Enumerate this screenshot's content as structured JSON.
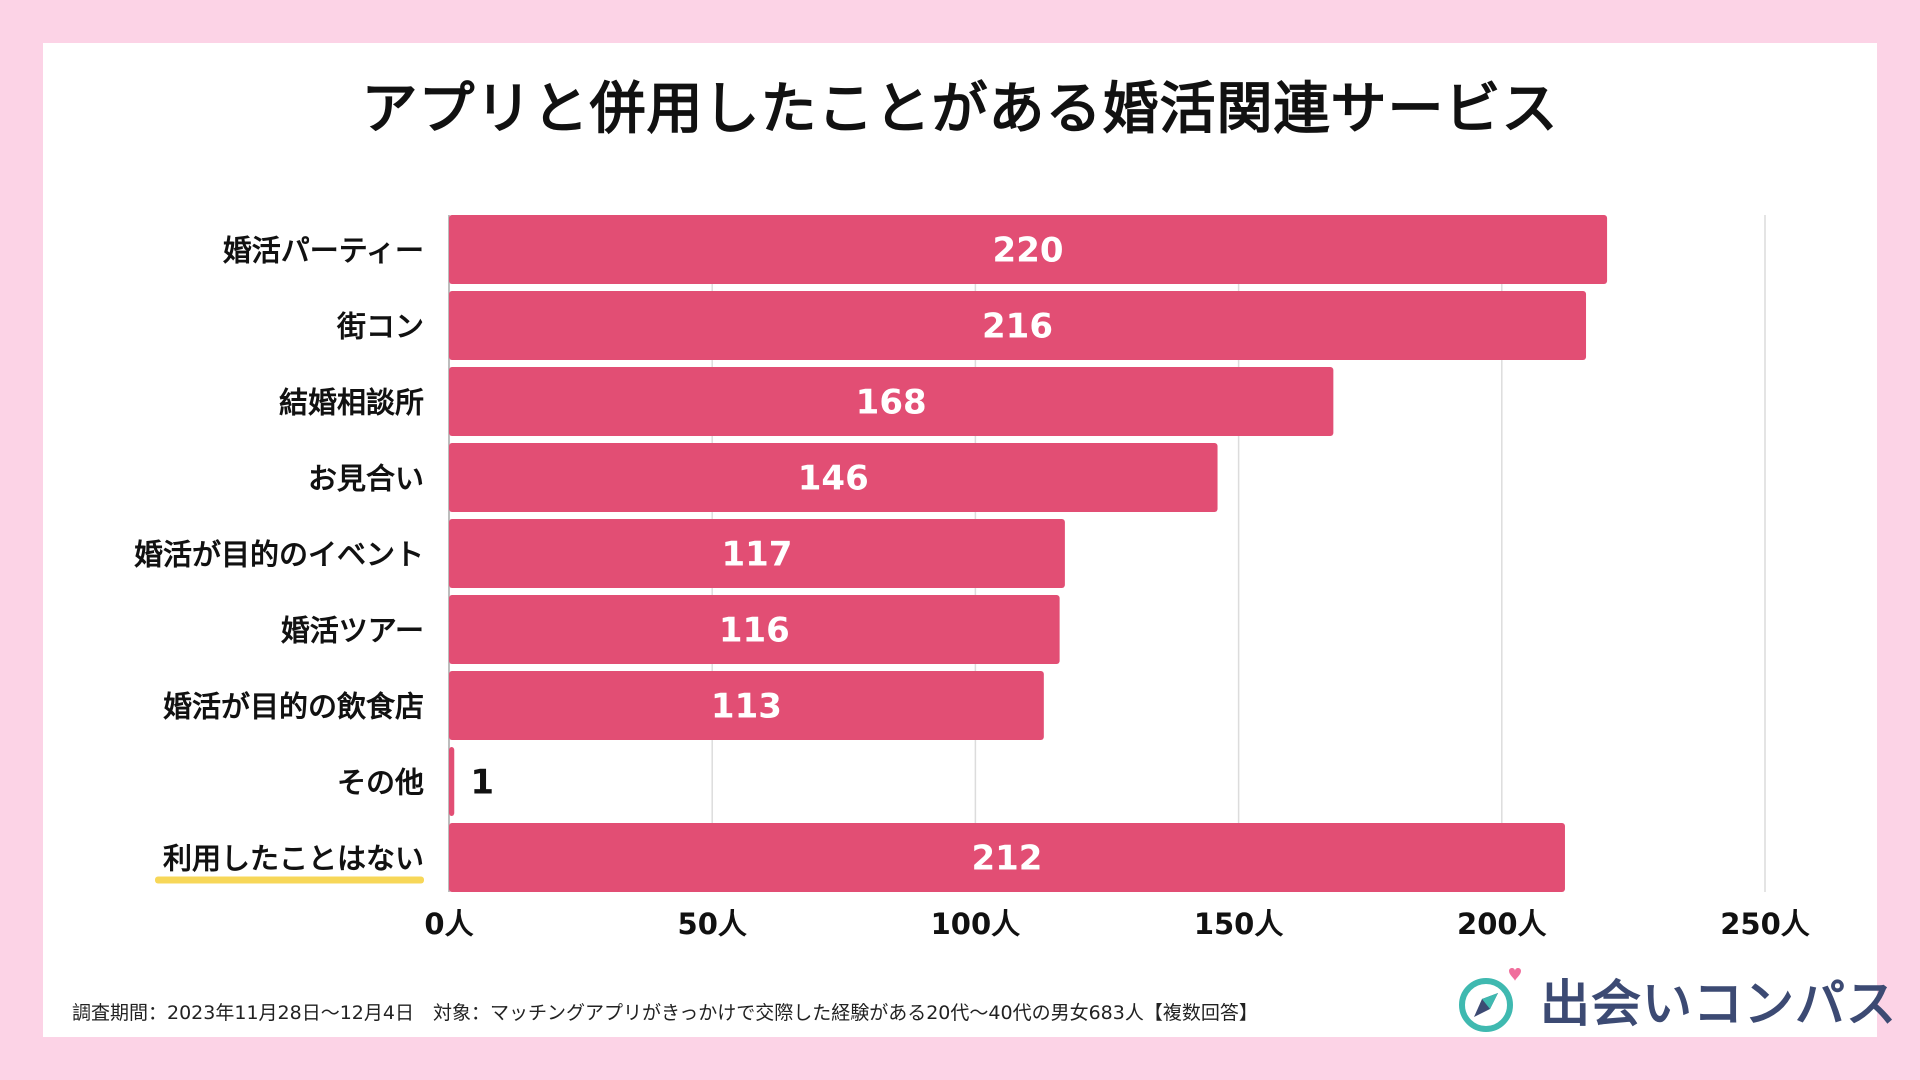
{
  "title": "アプリと併用したことがある婚活関連サービス",
  "chart_data": {
    "type": "bar",
    "orientation": "horizontal",
    "title": "アプリと併用したことがある婚活関連サービス",
    "categories": [
      "婚活パーティー",
      "街コン",
      "結婚相談所",
      "お見合い",
      "婚活が目的のイベント",
      "婚活ツアー",
      "婚活が目的の飲食店",
      "その他",
      "利用したことはない"
    ],
    "values": [
      220,
      216,
      168,
      146,
      117,
      116,
      113,
      1,
      212
    ],
    "x_ticks": [
      "0人",
      "50人",
      "100人",
      "150人",
      "200人",
      "250人"
    ],
    "xlim": [
      0,
      250
    ],
    "grid": true,
    "bar_color": "#e24e74",
    "highlight_category": "利用したことはない",
    "highlight_color": "#f7d758"
  },
  "footnote": "調査期間：2023年11月28日〜12月4日　対象：マッチングアプリがきっかけで交際した経験がある20代〜40代の男女683人【複数回答】",
  "brand": {
    "name": "出会いコンパス",
    "logo_icon": "compass-heart-icon"
  }
}
